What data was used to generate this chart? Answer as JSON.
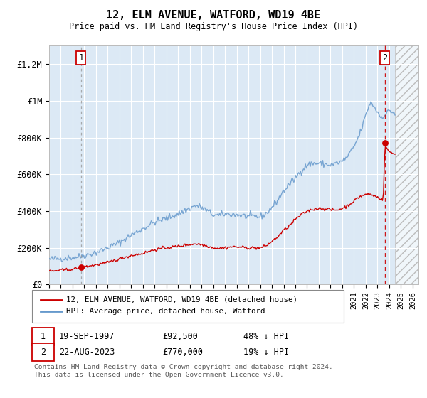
{
  "title": "12, ELM AVENUE, WATFORD, WD19 4BE",
  "subtitle": "Price paid vs. HM Land Registry's House Price Index (HPI)",
  "legend_line1": "12, ELM AVENUE, WATFORD, WD19 4BE (detached house)",
  "legend_line2": "HPI: Average price, detached house, Watford",
  "sale1_date": "19-SEP-1997",
  "sale1_year": 1997.72,
  "sale1_price": 92500,
  "sale1_label": "1",
  "sale1_note": "48% ↓ HPI",
  "sale2_date": "22-AUG-2023",
  "sale2_year": 2023.64,
  "sale2_price": 770000,
  "sale2_label": "2",
  "sale2_note": "19% ↓ HPI",
  "ylim_min": 0,
  "ylim_max": 1300000,
  "xmin": 1995,
  "xmax": 2026.5,
  "hatch_start": 2024.5,
  "bg_color": "#dce9f5",
  "line_color_red": "#cc0000",
  "line_color_blue": "#6699cc",
  "dashed_color": "#aaaaaa",
  "sale2_dash_color": "#cc0000",
  "footnote": "Contains HM Land Registry data © Crown copyright and database right 2024.\nThis data is licensed under the Open Government Licence v3.0.",
  "yticks": [
    0,
    200000,
    400000,
    600000,
    800000,
    1000000,
    1200000
  ],
  "ylabels": [
    "£0",
    "£200K",
    "£400K",
    "£600K",
    "£800K",
    "£1M",
    "£1.2M"
  ]
}
